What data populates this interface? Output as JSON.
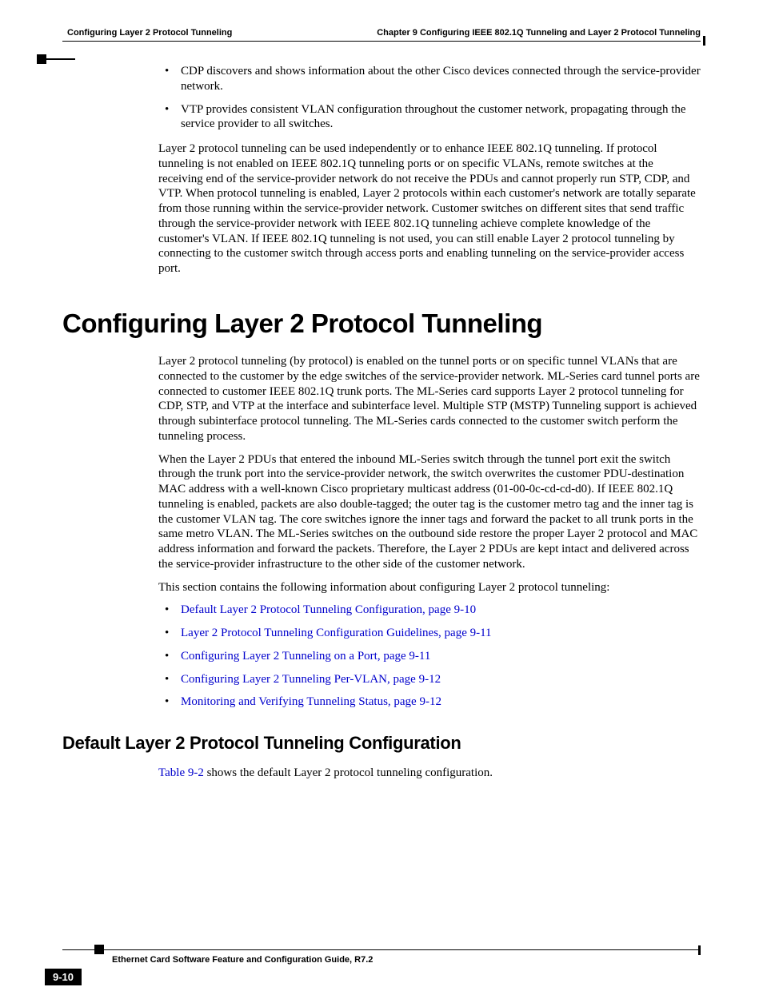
{
  "header": {
    "left": "Configuring Layer 2 Protocol Tunneling",
    "right": "Chapter 9 Configuring IEEE 802.1Q Tunneling and Layer 2 Protocol Tunneling"
  },
  "intro_bullets": [
    "CDP discovers and shows information about the other Cisco devices connected through the service-provider network.",
    "VTP provides consistent VLAN configuration throughout the customer network, propagating through the service provider to all switches."
  ],
  "intro_para": "Layer 2 protocol tunneling can be used independently or to enhance IEEE 802.1Q tunneling. If protocol tunneling is not enabled on IEEE 802.1Q tunneling ports or on specific VLANs, remote switches at the receiving end of the service-provider network do not receive the PDUs and cannot properly run STP, CDP, and VTP. When protocol tunneling is enabled, Layer 2 protocols within each customer's network are totally separate from those running within the service-provider network. Customer switches on different sites that send traffic through the service-provider network with IEEE 802.1Q tunneling achieve complete knowledge of the customer's VLAN. If IEEE 802.1Q tunneling is not used, you can still enable Layer 2 protocol tunneling by connecting to the customer switch through access ports and enabling tunneling on the service-provider access port.",
  "h1": "Configuring Layer 2 Protocol Tunneling",
  "para1": "Layer 2 protocol tunneling (by protocol) is enabled on the tunnel ports or on specific tunnel VLANs that are connected to the customer by the edge switches of the service-provider network. ML-Series card tunnel ports are connected to customer IEEE 802.1Q trunk ports. The ML-Series card supports Layer 2 protocol tunneling for CDP, STP, and VTP at the interface and subinterface level. Multiple STP (MSTP) Tunneling support is achieved through subinterface protocol tunneling. The ML-Series cards connected to the customer switch perform the tunneling process.",
  "para2": "When the Layer 2 PDUs that entered the inbound ML-Series switch through the tunnel port exit the switch through the trunk port into the service-provider network, the switch overwrites the customer PDU-destination MAC address with a well-known Cisco proprietary multicast address (01-00-0c-cd-cd-d0). If IEEE 802.1Q tunneling is enabled, packets are also double-tagged; the outer tag is the customer metro tag and the inner tag is the customer VLAN tag. The core switches ignore the inner tags and forward the packet to all trunk ports in the same metro VLAN. The ML-Series switches on the outbound side restore the proper Layer 2 protocol and MAC address information and forward the packets. Therefore, the Layer 2 PDUs are kept intact and delivered across the service-provider infrastructure to the other side of the customer network.",
  "para3": "This section contains the following information about configuring Layer 2 protocol tunneling:",
  "toc_links": [
    "Default Layer 2 Protocol Tunneling Configuration, page 9-10",
    "Layer 2 Protocol Tunneling Configuration Guidelines, page 9-11",
    "Configuring Layer 2 Tunneling on a Port, page 9-11",
    "Configuring Layer 2 Tunneling Per-VLAN, page 9-12",
    "Monitoring and Verifying Tunneling Status, page 9-12"
  ],
  "h2": "Default Layer 2 Protocol Tunneling Configuration",
  "para4_pre": "",
  "para4_link": "Table 9-2",
  "para4_post": " shows the default Layer 2 protocol tunneling configuration.",
  "footer": {
    "title": "Ethernet Card Software Feature and Configuration Guide, R7.2",
    "page": "9-10"
  },
  "colors": {
    "link": "#0000cc",
    "text": "#000000",
    "bg": "#ffffff"
  }
}
